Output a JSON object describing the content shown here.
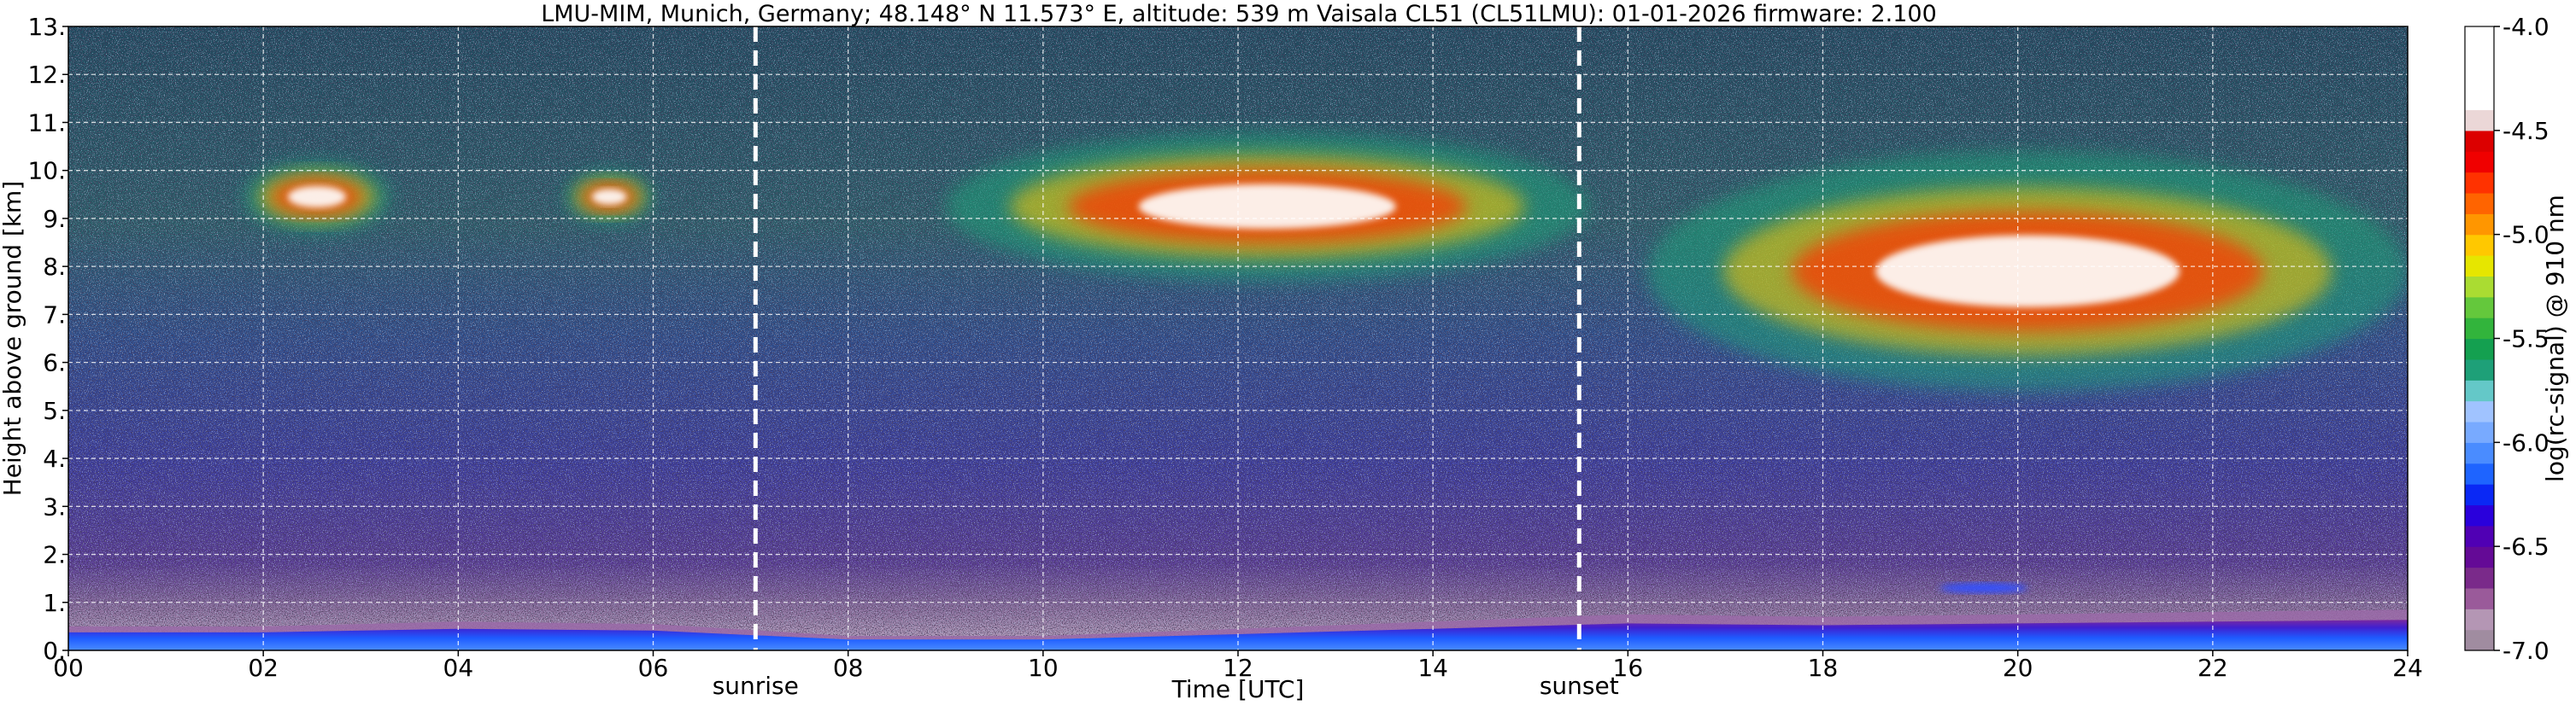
{
  "chart_data": {
    "type": "heatmap",
    "title": "LMU-MIM, Munich, Germany; 48.148° N 11.573° E, altitude: 539 m    Vaisala CL51 (CL51LMU): 01-01-2026    firmware: 2.100",
    "xlabel": "Time [UTC]",
    "ylabel": "Height above ground [km]",
    "xlim": [
      0,
      24
    ],
    "ylim": [
      0,
      13
    ],
    "x_ticks": [
      "00",
      "02",
      "04",
      "06",
      "08",
      "10",
      "12",
      "14",
      "16",
      "18",
      "20",
      "22",
      "24"
    ],
    "y_ticks": [
      "0.",
      "1.",
      "2.",
      "3.",
      "4.",
      "5.",
      "6.",
      "7.",
      "8.",
      "9.",
      "10.",
      "11.",
      "12.",
      "13."
    ],
    "grid": true,
    "markers": [
      {
        "label": "sunrise",
        "x": 7.05
      },
      {
        "label": "sunset",
        "x": 15.5
      }
    ],
    "colorbar": {
      "label": "log(rc-signal) @ 910 nm",
      "range": [
        -7.0,
        -4.0
      ],
      "ticks": [
        "-4.0",
        "-4.5",
        "-5.0",
        "-5.5",
        "-6.0",
        "-6.5",
        "-7.0"
      ],
      "colors": [
        "#a08ca0",
        "#b496b4",
        "#9a5a9a",
        "#7a2a8a",
        "#640a96",
        "#5000b4",
        "#2a00dc",
        "#0a28f5",
        "#1e64ff",
        "#4a8cff",
        "#78aaff",
        "#a0c3ff",
        "#64c8c8",
        "#1ea078",
        "#14a050",
        "#32b43c",
        "#64c83c",
        "#aadc32",
        "#e6e600",
        "#ffc800",
        "#ff9600",
        "#ff6400",
        "#ff3200",
        "#f00000",
        "#dc0000",
        "#ebd7d7",
        "#ffffff",
        "#ffffff",
        "#ffffff",
        "#ffffff"
      ]
    },
    "features": [
      {
        "name": "boundary layer",
        "x": [
          0,
          24
        ],
        "y_top_km": [
          0.5,
          0.5,
          0.6,
          0.55,
          0.3,
          0.3,
          0.45,
          0.6,
          0.75,
          0.7,
          0.75,
          0.8,
          0.85
        ]
      },
      {
        "name": "elevated aerosol layer",
        "x": [
          19.2,
          20.1
        ],
        "y": [
          1.2,
          1.4
        ]
      },
      {
        "name": "cloud",
        "x": [
          1.8,
          3.3
        ],
        "y": [
          8.7,
          10.2
        ]
      },
      {
        "name": "cloud",
        "x": [
          5.1,
          6.0
        ],
        "y": [
          8.9,
          10.0
        ]
      },
      {
        "name": "cloud",
        "x": [
          9.0,
          15.6
        ],
        "y": [
          7.7,
          10.8
        ]
      },
      {
        "name": "cloud",
        "x": [
          16.2,
          24.0
        ],
        "y": [
          5.4,
          10.4
        ]
      }
    ]
  }
}
